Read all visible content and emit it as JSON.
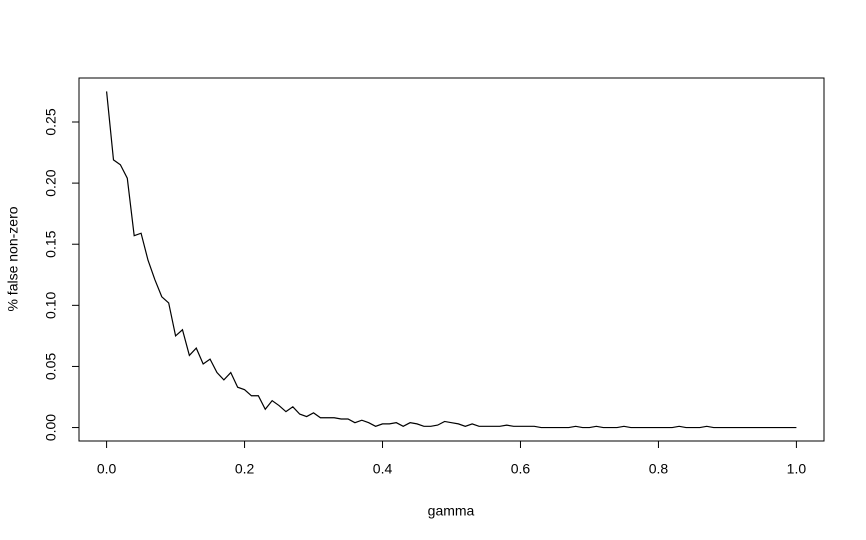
{
  "chart_data": {
    "type": "line",
    "xlabel": "gamma",
    "ylabel": "% false non-zero",
    "x": [
      0,
      0.01,
      0.02,
      0.03,
      0.04,
      0.05,
      0.06,
      0.07,
      0.08,
      0.09,
      0.1,
      0.11,
      0.12,
      0.13,
      0.14,
      0.15,
      0.16,
      0.17,
      0.18,
      0.19,
      0.2,
      0.21,
      0.22,
      0.23,
      0.24,
      0.25,
      0.26,
      0.27,
      0.28,
      0.29,
      0.3,
      0.31,
      0.32,
      0.33,
      0.34,
      0.35,
      0.36,
      0.37,
      0.38,
      0.39,
      0.4,
      0.41,
      0.42,
      0.43,
      0.44,
      0.45,
      0.46,
      0.47,
      0.48,
      0.49,
      0.5,
      0.51,
      0.52,
      0.53,
      0.54,
      0.55,
      0.56,
      0.57,
      0.58,
      0.59,
      0.6,
      0.61,
      0.62,
      0.63,
      0.64,
      0.65,
      0.66,
      0.67,
      0.68,
      0.69,
      0.7,
      0.71,
      0.72,
      0.73,
      0.74,
      0.75,
      0.76,
      0.77,
      0.78,
      0.79,
      0.8,
      0.81,
      0.82,
      0.83,
      0.84,
      0.85,
      0.86,
      0.87,
      0.88,
      0.89,
      0.9,
      0.91,
      0.92,
      0.93,
      0.94,
      0.95,
      0.96,
      0.97,
      0.98,
      0.99,
      1
    ],
    "values": [
      0.275,
      0.219,
      0.215,
      0.204,
      0.157,
      0.159,
      0.137,
      0.121,
      0.107,
      0.102,
      0.075,
      0.08,
      0.059,
      0.065,
      0.052,
      0.056,
      0.045,
      0.039,
      0.045,
      0.033,
      0.031,
      0.026,
      0.026,
      0.015,
      0.022,
      0.018,
      0.013,
      0.017,
      0.011,
      0.009,
      0.012,
      0.008,
      0.008,
      0.008,
      0.007,
      0.007,
      0.004,
      0.006,
      0.004,
      0.001,
      0.003,
      0.003,
      0.004,
      0.001,
      0.004,
      0.003,
      0.001,
      0.001,
      0.002,
      0.005,
      0.004,
      0.003,
      0.001,
      0.003,
      0.001,
      0.001,
      0.001,
      0.001,
      0.002,
      0.001,
      0.001,
      0.001,
      0.001,
      0,
      0,
      0,
      0,
      0,
      0.001,
      0,
      0,
      0.001,
      0,
      0,
      0,
      0.001,
      0,
      0,
      0,
      0,
      0,
      0,
      0,
      0.001,
      0,
      0,
      0,
      0.001,
      0,
      0,
      0,
      0,
      0,
      0,
      0,
      0,
      0,
      0,
      0,
      0,
      0
    ],
    "color": "#000000",
    "xlim": [
      -0.04,
      1.04
    ],
    "ylim": [
      -0.011,
      0.286
    ],
    "xticks": [
      {
        "value": 0,
        "label": "0.0"
      },
      0.2,
      0.4,
      0.6,
      0.8,
      {
        "value": 1,
        "label": "1.0"
      }
    ],
    "yticks": [
      {
        "value": 0,
        "label": "0.00"
      },
      {
        "value": 0.05,
        "label": "0.05"
      },
      {
        "value": 0.1,
        "label": "0.10"
      },
      {
        "value": 0.15,
        "label": "0.15"
      },
      {
        "value": 0.2,
        "label": "0.20"
      },
      {
        "value": 0.25,
        "label": "0.25"
      }
    ]
  }
}
